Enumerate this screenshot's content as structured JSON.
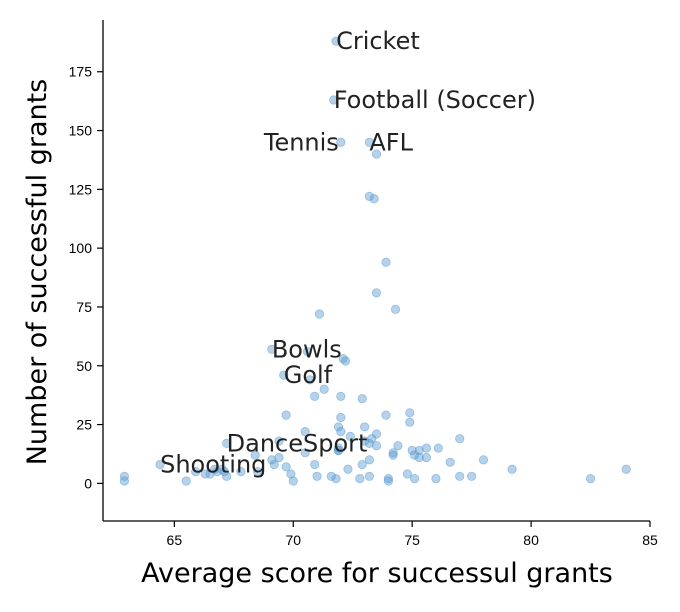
{
  "chart_data": {
    "type": "scatter",
    "xlabel": "Average score for successul grants",
    "ylabel": "Number of successful grants",
    "xlim": [
      62,
      85
    ],
    "ylim": [
      -16,
      197
    ],
    "xticks": [
      65,
      70,
      75,
      80,
      85
    ],
    "yticks": [
      0,
      25,
      50,
      75,
      100,
      125,
      150,
      175
    ],
    "grid": false,
    "point_color": "#5b9bd0",
    "points": [
      {
        "x": 71.8,
        "y": 188
      },
      {
        "x": 71.7,
        "y": 163
      },
      {
        "x": 72.0,
        "y": 145
      },
      {
        "x": 73.2,
        "y": 145
      },
      {
        "x": 73.5,
        "y": 140
      },
      {
        "x": 73.2,
        "y": 122
      },
      {
        "x": 73.4,
        "y": 121
      },
      {
        "x": 73.9,
        "y": 94
      },
      {
        "x": 73.5,
        "y": 81
      },
      {
        "x": 74.3,
        "y": 74
      },
      {
        "x": 71.1,
        "y": 72
      },
      {
        "x": 69.1,
        "y": 57
      },
      {
        "x": 70.6,
        "y": 56
      },
      {
        "x": 72.1,
        "y": 53
      },
      {
        "x": 72.2,
        "y": 52
      },
      {
        "x": 69.6,
        "y": 46
      },
      {
        "x": 70.7,
        "y": 44
      },
      {
        "x": 71.3,
        "y": 40
      },
      {
        "x": 70.9,
        "y": 37
      },
      {
        "x": 72.0,
        "y": 37
      },
      {
        "x": 72.9,
        "y": 36
      },
      {
        "x": 74.9,
        "y": 30
      },
      {
        "x": 69.7,
        "y": 29
      },
      {
        "x": 72.0,
        "y": 28
      },
      {
        "x": 73.9,
        "y": 29
      },
      {
        "x": 74.9,
        "y": 26
      },
      {
        "x": 71.9,
        "y": 24
      },
      {
        "x": 73.0,
        "y": 24
      },
      {
        "x": 70.5,
        "y": 22
      },
      {
        "x": 72.0,
        "y": 22
      },
      {
        "x": 73.5,
        "y": 21
      },
      {
        "x": 73.3,
        "y": 19
      },
      {
        "x": 72.4,
        "y": 20
      },
      {
        "x": 73.2,
        "y": 17
      },
      {
        "x": 73.5,
        "y": 16
      },
      {
        "x": 77.0,
        "y": 19
      },
      {
        "x": 69.4,
        "y": 18
      },
      {
        "x": 67.2,
        "y": 17
      },
      {
        "x": 71.9,
        "y": 15
      },
      {
        "x": 71.9,
        "y": 14
      },
      {
        "x": 74.4,
        "y": 16
      },
      {
        "x": 75.0,
        "y": 14
      },
      {
        "x": 75.3,
        "y": 14
      },
      {
        "x": 75.6,
        "y": 15
      },
      {
        "x": 76.1,
        "y": 15
      },
      {
        "x": 70.5,
        "y": 13
      },
      {
        "x": 74.2,
        "y": 12
      },
      {
        "x": 75.1,
        "y": 12
      },
      {
        "x": 75.3,
        "y": 11
      },
      {
        "x": 75.6,
        "y": 11
      },
      {
        "x": 68.4,
        "y": 12
      },
      {
        "x": 69.4,
        "y": 11
      },
      {
        "x": 69.1,
        "y": 10
      },
      {
        "x": 73.2,
        "y": 10
      },
      {
        "x": 72.9,
        "y": 8
      },
      {
        "x": 76.6,
        "y": 9
      },
      {
        "x": 78.0,
        "y": 10
      },
      {
        "x": 69.2,
        "y": 8
      },
      {
        "x": 69.7,
        "y": 7
      },
      {
        "x": 70.9,
        "y": 8
      },
      {
        "x": 64.4,
        "y": 8
      },
      {
        "x": 67.8,
        "y": 5
      },
      {
        "x": 68.5,
        "y": 5
      },
      {
        "x": 72.3,
        "y": 6
      },
      {
        "x": 79.2,
        "y": 6
      },
      {
        "x": 84.0,
        "y": 6
      },
      {
        "x": 65.9,
        "y": 5
      },
      {
        "x": 66.3,
        "y": 4
      },
      {
        "x": 66.5,
        "y": 4
      },
      {
        "x": 66.7,
        "y": 6
      },
      {
        "x": 66.8,
        "y": 5
      },
      {
        "x": 67.0,
        "y": 6
      },
      {
        "x": 67.1,
        "y": 5
      },
      {
        "x": 67.2,
        "y": 3
      },
      {
        "x": 69.9,
        "y": 4
      },
      {
        "x": 71.0,
        "y": 3
      },
      {
        "x": 71.6,
        "y": 3
      },
      {
        "x": 71.8,
        "y": 2
      },
      {
        "x": 72.8,
        "y": 2
      },
      {
        "x": 73.2,
        "y": 3
      },
      {
        "x": 74.0,
        "y": 2
      },
      {
        "x": 74.0,
        "y": 1
      },
      {
        "x": 74.8,
        "y": 4
      },
      {
        "x": 75.1,
        "y": 2
      },
      {
        "x": 76.0,
        "y": 2
      },
      {
        "x": 77.0,
        "y": 3
      },
      {
        "x": 77.5,
        "y": 3
      },
      {
        "x": 82.5,
        "y": 2
      },
      {
        "x": 62.9,
        "y": 3
      },
      {
        "x": 62.9,
        "y": 1
      },
      {
        "x": 65.5,
        "y": 1
      },
      {
        "x": 70.0,
        "y": 1
      },
      {
        "x": 71.9,
        "y": 14
      },
      {
        "x": 73.0,
        "y": 18
      },
      {
        "x": 74.2,
        "y": 13
      }
    ],
    "annotations": [
      {
        "text": "Cricket",
        "x": 71.8,
        "y": 188
      },
      {
        "text": "Football (Soccer)",
        "x": 71.7,
        "y": 163
      },
      {
        "text": "Tennis",
        "x": 72.0,
        "y": 145,
        "align": "right"
      },
      {
        "text": "AFL",
        "x": 73.2,
        "y": 145
      },
      {
        "text": "Bowls",
        "x": 69.1,
        "y": 57
      },
      {
        "text": "Golf",
        "x": 69.6,
        "y": 46
      },
      {
        "text": "DanceSport",
        "x": 67.2,
        "y": 17
      },
      {
        "text": "Shooting",
        "x": 64.4,
        "y": 8
      }
    ]
  }
}
